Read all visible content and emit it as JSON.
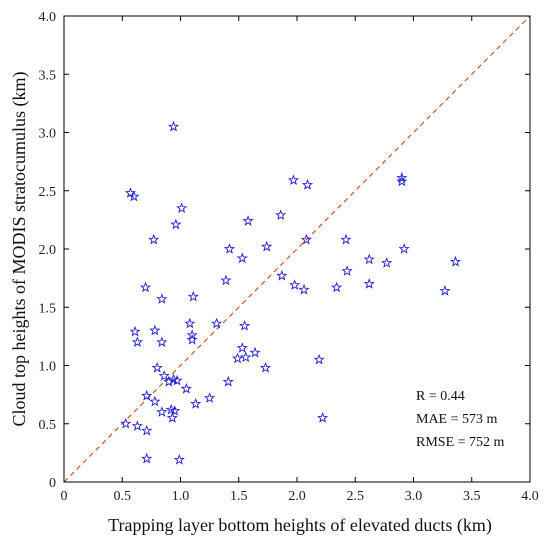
{
  "chart_data": {
    "type": "scatter",
    "title": "",
    "xlabel": "Trapping layer bottom heights of elevated ducts (km)",
    "ylabel": "Cloud top heights of MODIS stratocumulus (km)",
    "xlim": [
      0,
      4.0
    ],
    "ylim": [
      0,
      4.0
    ],
    "xticks": [
      "0",
      "0.5",
      "1.0",
      "1.5",
      "2.0",
      "2.5",
      "3.0",
      "3.5",
      "4.0"
    ],
    "yticks": [
      "0",
      "0.5",
      "1.0",
      "1.5",
      "2.0",
      "2.5",
      "3.0",
      "3.5",
      "4.0"
    ],
    "grid": false,
    "marker": "star",
    "marker_color": "#1f1fd6",
    "reference_line": {
      "type": "1:1",
      "style": "dashed",
      "color": "#e0501a"
    },
    "annotations": [
      "R = 0.44",
      "MAE = 573 m",
      "RMSE = 752 m"
    ],
    "points": [
      [
        0.57,
        2.48
      ],
      [
        0.6,
        2.45
      ],
      [
        0.94,
        3.05
      ],
      [
        1.01,
        2.35
      ],
      [
        0.96,
        2.21
      ],
      [
        0.77,
        2.08
      ],
      [
        1.58,
        2.24
      ],
      [
        1.97,
        2.59
      ],
      [
        2.09,
        2.55
      ],
      [
        1.86,
        2.29
      ],
      [
        2.9,
        2.61
      ],
      [
        2.9,
        2.58
      ],
      [
        1.42,
        2.0
      ],
      [
        1.53,
        1.92
      ],
      [
        1.74,
        2.02
      ],
      [
        2.08,
        2.08
      ],
      [
        2.42,
        2.08
      ],
      [
        2.92,
        2.0
      ],
      [
        2.62,
        1.91
      ],
      [
        2.77,
        1.88
      ],
      [
        3.36,
        1.89
      ],
      [
        3.27,
        1.64
      ],
      [
        1.87,
        1.77
      ],
      [
        1.98,
        1.69
      ],
      [
        2.06,
        1.65
      ],
      [
        2.34,
        1.67
      ],
      [
        2.43,
        1.81
      ],
      [
        2.62,
        1.7
      ],
      [
        0.7,
        1.67
      ],
      [
        0.84,
        1.57
      ],
      [
        1.11,
        1.59
      ],
      [
        1.39,
        1.73
      ],
      [
        0.61,
        1.29
      ],
      [
        0.63,
        1.2
      ],
      [
        0.78,
        1.3
      ],
      [
        0.84,
        1.2
      ],
      [
        1.08,
        1.36
      ],
      [
        1.1,
        1.26
      ],
      [
        1.1,
        1.22
      ],
      [
        1.31,
        1.36
      ],
      [
        1.55,
        1.34
      ],
      [
        0.8,
        0.98
      ],
      [
        0.86,
        0.91
      ],
      [
        0.9,
        0.86
      ],
      [
        0.94,
        0.88
      ],
      [
        0.97,
        0.87
      ],
      [
        1.05,
        0.8
      ],
      [
        1.41,
        0.86
      ],
      [
        1.49,
        1.06
      ],
      [
        1.53,
        1.15
      ],
      [
        1.56,
        1.07
      ],
      [
        1.64,
        1.11
      ],
      [
        1.73,
        0.98
      ],
      [
        2.19,
        1.05
      ],
      [
        0.71,
        0.74
      ],
      [
        0.78,
        0.69
      ],
      [
        0.84,
        0.6
      ],
      [
        0.92,
        0.62
      ],
      [
        0.93,
        0.55
      ],
      [
        0.95,
        0.61
      ],
      [
        1.13,
        0.67
      ],
      [
        1.25,
        0.72
      ],
      [
        2.22,
        0.55
      ],
      [
        0.53,
        0.5
      ],
      [
        0.63,
        0.48
      ],
      [
        0.71,
        0.44
      ],
      [
        0.71,
        0.2
      ],
      [
        0.99,
        0.19
      ]
    ]
  }
}
